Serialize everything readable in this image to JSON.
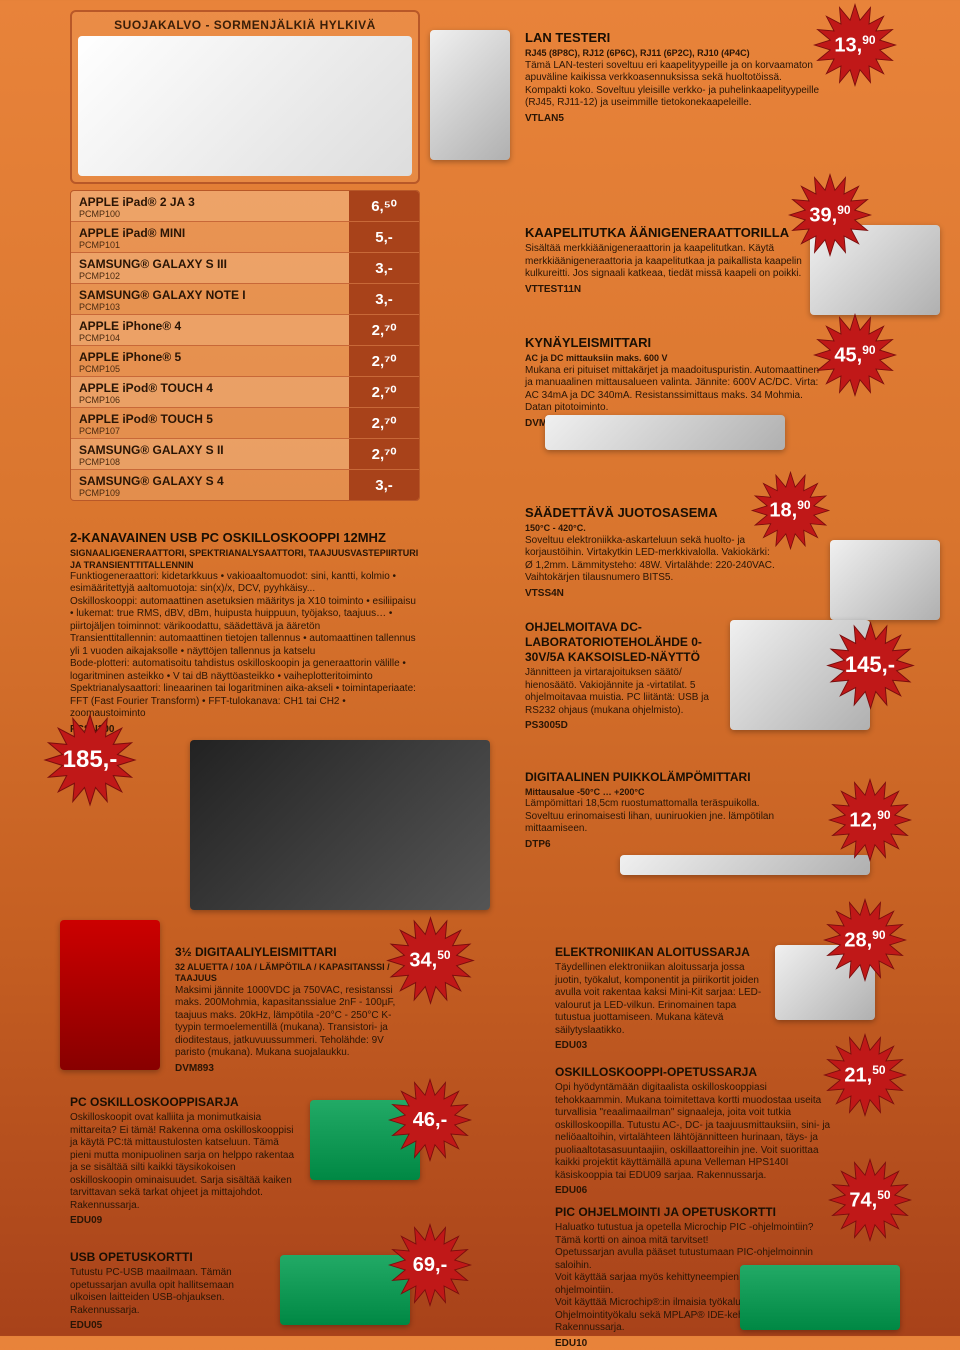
{
  "colors": {
    "bg_top": "#e8833a",
    "bg_bottom": "#a8421a",
    "star_fill": "#c01818",
    "star_stroke": "#7a0d0d",
    "table_price_bg": "#a8421a",
    "text_dark": "#2a1505"
  },
  "protector": {
    "title": "SUOJAKALVO - SORMENJÄLKIÄ HYLKIVÄ"
  },
  "table": {
    "rows": [
      {
        "name": "APPLE iPad® 2 JA 3",
        "code": "PCMP100",
        "price": "6,⁵⁰"
      },
      {
        "name": "APPLE iPad® MINI",
        "code": "PCMP101",
        "price": "5,-"
      },
      {
        "name": "SAMSUNG® GALAXY S III",
        "code": "PCMP102",
        "price": "3,-"
      },
      {
        "name": "SAMSUNG® GALAXY NOTE I",
        "code": "PCMP103",
        "price": "3,-"
      },
      {
        "name": "APPLE iPhone® 4",
        "code": "PCMP104",
        "price": "2,⁷⁰"
      },
      {
        "name": "APPLE iPhone® 5",
        "code": "PCMP105",
        "price": "2,⁷⁰"
      },
      {
        "name": "APPLE iPod® TOUCH 4",
        "code": "PCMP106",
        "price": "2,⁷⁰"
      },
      {
        "name": "APPLE iPod® TOUCH 5",
        "code": "PCMP107",
        "price": "2,⁷⁰"
      },
      {
        "name": "SAMSUNG® GALAXY S II",
        "code": "PCMP108",
        "price": "2,⁷⁰"
      },
      {
        "name": "SAMSUNG® GALAXY S 4",
        "code": "PCMP109",
        "price": "3,-"
      }
    ]
  },
  "products": {
    "lan": {
      "title": "LAN TESTERI",
      "sub": "RJ45 (8P8C), RJ12 (6P6C), RJ11 (6P2C), RJ10 (4P4C)",
      "desc": "Tämä LAN-testeri soveltuu eri kaapelityypeille ja on korvaamaton apuväline kaikissa verkkoasennuksissa sekä huoltotöissä. Kompakti koko. Soveltuu yleisille verkko- ja puhelinkaapelityypeille (RJ45, RJ11-12) ja useimmille tietokonekaapeleille.",
      "code": "VTLAN5",
      "price": "13,",
      "sup": "90"
    },
    "tracer": {
      "title": "KAAPELITUTKA ÄÄNIGENERAATTORILLA",
      "desc": "Sisältää merkkiäänigeneraattorin ja kaapelitutkan. Käytä merkkiäänigeneraattoria ja kaapelitutkaa ja paikallista kaapelin kulkureitti. Jos signaali katkeaa, tiedät missä kaapeli on poikki.",
      "code": "VTTEST11N",
      "price": "39,",
      "sup": "90"
    },
    "pen": {
      "title": "KYNÄYLEISMITTARI",
      "sub": "AC ja DC mittauksiin maks. 600 V",
      "desc": "Mukana eri pituiset mittakärjet ja maadoituspuristin. Automaattinen ja manuaalinen mittausalueen valinta. Jännite: 600V AC/DC. Virta: AC 34mA ja DC 340mA. Resistanssimittaus maks. 34 Mohmia. Datan pitotoiminto.",
      "code": "DVM3218",
      "price": "45,",
      "sup": "90"
    },
    "solder": {
      "title": "SÄÄDETTÄVÄ JUOTOSASEMA",
      "sub": "150°C - 420°C.",
      "desc": "Soveltuu elektroniikka-askarteluun sekä huolto- ja korjaustöihin. Virtakytkin LED-merkkivalolla. Vakiokärki: Ø 1,2mm. Lämmitysteho: 48W. Virtalähde: 220-240VAC. Vaihtokärjen tilausnumero BITS5.",
      "code": "VTSS4N",
      "price": "18,",
      "sup": "90"
    },
    "psu": {
      "title": "OHJELMOITAVA DC-LABORATORIOTEHOLÄHDE 0-30V/5A KAKSOISLED-NÄYTTÖ",
      "desc": "Jännitteen ja virtarajoituksen säätö/ hienosäätö. Vakiojännite ja -virtatilat. 5 ohjelmoitavaa muistia. PC liitäntä: USB ja RS232 ohjaus (mukana ohjelmisto).",
      "code": "PS3005D",
      "price": "145,-"
    },
    "scope": {
      "title": "2-KANAVAINEN USB PC OSKILLOSKOOPPI 12MHZ",
      "sub": "SIGNAALIGENERAATTORI, SPEKTRIANALYSAATTORI, TAAJUUSVASTEPIIRTURI JA TRANSIENTTITALLENNIN",
      "desc1": "Funktiogeneraattori: kidetarkkuus • vakioaaltomuodot: sini, kantti, kolmio • esimääritettyjä aaltomuotoja: sin(x)/x, DCV, pyyhkäisy...",
      "desc2": "Oskilloskooppi: automaattinen asetuksien määritys ja X10 toiminto • esiliipaisu • lukemat: true RMS, dBV, dBm, huipusta huippuun, työjakso, taajuus… • piirtojäljen toiminnot: värikoodattu, säädettävä ja ääretön",
      "desc3": "Transienttitallennin: automaattinen tietojen tallennus • automaattinen tallennus yli 1 vuoden aikajaksolle • näyttöjen tallennus ja katselu",
      "desc4": "Bode-plotteri: automatisoitu tahdistus oskilloskoopin ja generaattorin välille • logaritminen asteikko • V tai dB näyttöasteikko • vaiheplotteritoiminto",
      "desc5": "Spektrianalysaattori: lineaarinen tai logaritminen aika-akseli • toimintaperiaate: FFT (Fast Fourier Transform) • FFT-tulokanava: CH1 tai CH2 • zoomaustoiminto",
      "code": "PCSU200",
      "price": "185,-"
    },
    "thermo": {
      "title": "DIGITAALINEN PUIKKOLÄMPÖMITTARI",
      "sub": "Mittausalue -50°C … +200°C",
      "desc": "Lämpömittari 18,5cm ruostumattomalla teräspuikolla. Soveltuu erinomaisesti lihan, uuniruokien jne. lämpötilan mittaamiseen.",
      "code": "DTP6",
      "price": "12,",
      "sup": "90"
    },
    "dmm": {
      "title": "3½ DIGITAALIYLEISMITTARI",
      "sub": "32 ALUETTA / 10A / LÄMPÖTILA / KAPASITANSSI / TAAJUUS",
      "desc": "Maksimi jännite 1000VDC ja 750VAC, resistanssi maks. 200Mohmia, kapasitanssialue 2nF - 100µF, taajuus maks. 20kHz, lämpötila -20°C - 250°C K-tyypin termoelementillä (mukana). Transistori- ja dioditestaus, jatkuvuussummeri. Teholähde: 9V paristo (mukana). Mukana suojalaukku.",
      "code": "DVM893",
      "price": "34,",
      "sup": "50"
    },
    "starter": {
      "title": "ELEKTRONIIKAN ALOITUSSARJA",
      "desc": "Täydellinen elektroniikan aloitussarja jossa juotin, työkalut, komponentit ja piirikortit joiden avulla voit rakentaa kaksi Mini-Kit sarjaa: LED-valourut ja LED-vilkun. Erinomainen tapa tutustua juottamiseen. Mukana kätevä säilytyslaatikko.",
      "code": "EDU03",
      "price": "28,",
      "sup": "90"
    },
    "pcscope": {
      "title": "PC OSKILLOSKOOPPISARJA",
      "desc": "Oskilloskoopit ovat kalliita ja monimutkaisia mittareita? Ei tämä! Rakenna oma oskilloskooppisi ja käytä PC:tä mittaustulosten katseluun. Tämä pieni mutta monipuolinen sarja on helppo rakentaa ja se sisältää silti kaikki täysikokoisen oskilloskoopin ominaisuudet. Sarja sisältää kaiken tarvittavan sekä tarkat ohjeet ja mittajohdot. Rakennussarja.",
      "code": "EDU09",
      "price": "46,-"
    },
    "eduscope": {
      "title": "OSKILLOSKOOPPI-OPETUSSARJA",
      "desc": "Opi hyödyntämään digitaalista oskilloskooppiasi tehokkaammin. Mukana toimitettava kortti muodostaa useita turvallisia \"reaalimaailman\" signaaleja, joita voit tutkia oskilloskoopilla. Tutustu AC-, DC- ja taajuusmittauksiin, sini- ja neliöaaltoihin, virtalähteen lähtöjännitteen hurinaan, täys- ja puoliaaltotasasuuntaajiin, oskillaattoreihin jne. Voit suorittaa kaikki projektit käyttämällä apuna Velleman HPS140I käsiskooppia tai EDU09 sarjaa. Rakennussarja.",
      "code": "EDU06",
      "price": "21,",
      "sup": "50"
    },
    "usb": {
      "title": "USB OPETUSKORTTI",
      "desc": "Tutustu PC-USB maailmaan. Tämän opetussarjan avulla opit hallitsemaan ulkoisen laitteiden USB-ohjauksen. Rakennussarja.",
      "code": "EDU05",
      "price": "69,-"
    },
    "pic": {
      "title": "PIC OHJELMOINTI JA OPETUSKORTTI",
      "desc1": "Haluatko tutustua ja opetella Microchip PIC -ohjelmointiin? Tämä kortti on ainoa mitä tarvitset!",
      "desc2": "Opetussarjan avulla pääset tutustumaan PIC-ohjelmoinnin saloihin.",
      "desc3": "Voit käyttää sarjaa myös kehittyneempien ohjelmien ohjelmointiin.",
      "desc4": "Voit käyttää Microchip®:in ilmaisia työkaluja kuten PICKit2™ Ohjelmointityökalu sekä MPLAP® IDE-kehitysympäristöä. Rakennussarja.",
      "code": "EDU10",
      "price": "74,",
      "sup": "50"
    }
  }
}
